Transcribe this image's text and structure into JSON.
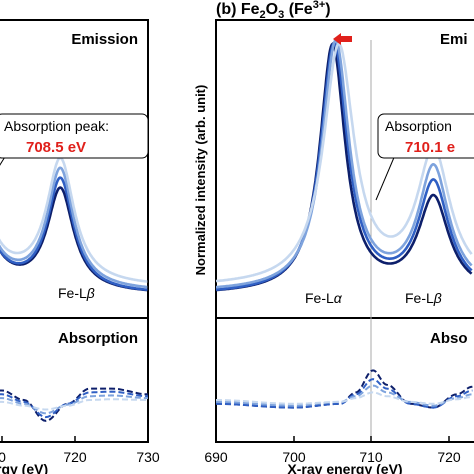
{
  "left_panel": {
    "emission_label": "Emission",
    "absorption_label": "Absorption",
    "annotation_line1": "Absorption peak:",
    "annotation_value": "708.5 eV",
    "peak_label_beta_prefix": "Fe-L",
    "peak_label_beta_greek": "β",
    "x_ticks": [
      "0",
      "720",
      "730"
    ],
    "x_axis_label": "rgy (eV)"
  },
  "right_panel": {
    "title_prefix": "(b) Fe",
    "title_sub1": "2",
    "title_mid": "O",
    "title_sub2": "3",
    "title_suffix": " (Fe",
    "title_sup": "3+",
    "title_close": ")",
    "emission_label": "Emi",
    "absorption_label": "Abso",
    "annotation_line1": "Absorption",
    "annotation_value": "710.1 e",
    "peak_label_alpha_prefix": "Fe-L",
    "peak_label_alpha_greek": "α",
    "peak_label_beta_prefix": "Fe-L",
    "peak_label_beta_greek": "β",
    "y_axis_label": "Normalized intensity (arb. unit)",
    "x_ticks": [
      "690",
      "700",
      "710",
      "720"
    ],
    "x_axis_label": "X-ray energy (eV)"
  },
  "colors": {
    "series": [
      "#0d1f6b",
      "#2f5fc4",
      "#7ea3dd",
      "#c6d8ef"
    ],
    "accent_red": "#e0201b",
    "marker_line": "#aaaaaa"
  },
  "chart_data": [
    {
      "type": "line",
      "panel": "emission-right",
      "x_range": [
        690,
        723
      ],
      "y_range": [
        0,
        1.0
      ],
      "series": [
        {
          "peaks": [
            [
              705.0,
              1.0,
              2.0
            ],
            [
              718.0,
              0.38,
              2.4
            ]
          ],
          "baseline": 0.02
        },
        {
          "peaks": [
            [
              705.2,
              1.0,
              2.1
            ],
            [
              718.0,
              0.44,
              2.4
            ]
          ],
          "baseline": 0.02
        },
        {
          "peaks": [
            [
              705.4,
              1.0,
              2.1
            ],
            [
              718.0,
              0.49,
              2.4
            ]
          ],
          "baseline": 0.03
        },
        {
          "peaks": [
            [
              705.8,
              0.96,
              2.4
            ],
            [
              718.0,
              0.53,
              2.6
            ]
          ],
          "baseline": 0.05
        }
      ]
    },
    {
      "type": "line",
      "panel": "emission-left",
      "x_range": [
        707,
        730
      ],
      "y_range": [
        0,
        1.0
      ],
      "series": [
        {
          "peaks": [
            [
              705.0,
              1.0,
              2.0
            ],
            [
              718.0,
              0.41,
              2.2
            ]
          ],
          "baseline": 0.02
        },
        {
          "peaks": [
            [
              705.0,
              1.0,
              2.0
            ],
            [
              718.0,
              0.45,
              2.2
            ]
          ],
          "baseline": 0.02
        },
        {
          "peaks": [
            [
              705.0,
              1.0,
              2.0
            ],
            [
              718.0,
              0.48,
              2.2
            ]
          ],
          "baseline": 0.03
        },
        {
          "peaks": [
            [
              705.0,
              1.0,
              2.0
            ],
            [
              718.0,
              0.5,
              2.3
            ]
          ],
          "baseline": 0.05
        }
      ]
    },
    {
      "type": "line",
      "panel": "absorption-right",
      "style": "dashed",
      "x_range": [
        690,
        723
      ],
      "series": [
        {
          "points": [
            [
              690,
              -0.1
            ],
            [
              700,
              -0.2
            ],
            [
              706,
              -0.1
            ],
            [
              708,
              0.2
            ],
            [
              710.2,
              0.78
            ],
            [
              712,
              0.4
            ],
            [
              715,
              -0.1
            ],
            [
              718,
              -0.2
            ],
            [
              721,
              0.15
            ],
            [
              723,
              0.35
            ]
          ]
        },
        {
          "points": [
            [
              690,
              -0.1
            ],
            [
              700,
              -0.2
            ],
            [
              706,
              -0.1
            ],
            [
              708,
              0.15
            ],
            [
              710.2,
              0.55
            ],
            [
              712,
              0.3
            ],
            [
              715,
              -0.1
            ],
            [
              718,
              -0.2
            ],
            [
              721,
              0.1
            ],
            [
              723,
              0.25
            ]
          ]
        },
        {
          "points": [
            [
              690,
              -0.05
            ],
            [
              700,
              -0.15
            ],
            [
              706,
              -0.05
            ],
            [
              708,
              0.1
            ],
            [
              710.2,
              0.38
            ],
            [
              712,
              0.2
            ],
            [
              715,
              -0.05
            ],
            [
              718,
              -0.15
            ],
            [
              721,
              0.05
            ],
            [
              723,
              0.15
            ]
          ]
        },
        {
          "points": [
            [
              690,
              0.0
            ],
            [
              700,
              -0.1
            ],
            [
              706,
              -0.05
            ],
            [
              708,
              0.05
            ],
            [
              710.2,
              0.2
            ],
            [
              712,
              0.1
            ],
            [
              715,
              -0.05
            ],
            [
              718,
              -0.1
            ],
            [
              721,
              0.02
            ],
            [
              723,
              0.08
            ]
          ]
        }
      ]
    },
    {
      "type": "line",
      "panel": "absorption-left",
      "style": "dashed",
      "x_range": [
        707,
        730
      ],
      "series": [
        {
          "points": [
            [
              707,
              0.2
            ],
            [
              710,
              0.25
            ],
            [
              713,
              0.0
            ],
            [
              716,
              -0.55
            ],
            [
              719,
              -0.1
            ],
            [
              722,
              0.3
            ],
            [
              725,
              0.3
            ],
            [
              730,
              0.15
            ]
          ]
        },
        {
          "points": [
            [
              707,
              0.12
            ],
            [
              710,
              0.15
            ],
            [
              713,
              -0.05
            ],
            [
              716,
              -0.45
            ],
            [
              719,
              -0.1
            ],
            [
              722,
              0.2
            ],
            [
              725,
              0.22
            ],
            [
              730,
              0.1
            ]
          ]
        },
        {
          "points": [
            [
              707,
              0.05
            ],
            [
              710,
              0.05
            ],
            [
              713,
              -0.1
            ],
            [
              716,
              -0.35
            ],
            [
              719,
              -0.12
            ],
            [
              722,
              0.1
            ],
            [
              725,
              0.12
            ],
            [
              730,
              0.05
            ]
          ]
        },
        {
          "points": [
            [
              707,
              -0.05
            ],
            [
              710,
              -0.05
            ],
            [
              713,
              -0.15
            ],
            [
              716,
              -0.25
            ],
            [
              719,
              -0.15
            ],
            [
              722,
              0.0
            ],
            [
              725,
              0.02
            ],
            [
              730,
              0.0
            ]
          ]
        }
      ]
    }
  ]
}
